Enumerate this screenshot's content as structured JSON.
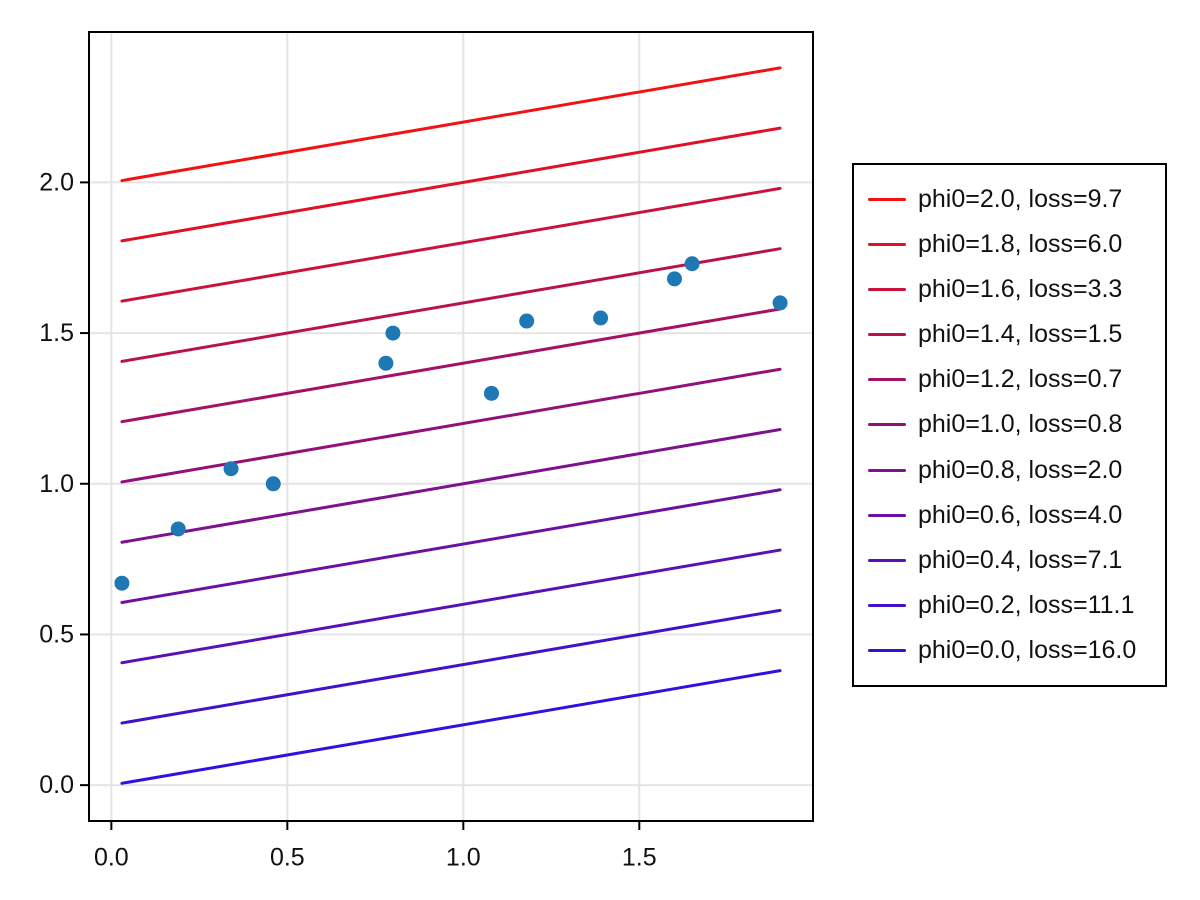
{
  "figure": {
    "background": "#ffffff",
    "frame_color": "#000000",
    "grid_color": "#e4e4e4",
    "tick_color": "#000000",
    "tick_label_color": "#111111"
  },
  "chart_data": {
    "type": "line+scatter",
    "title": "",
    "xlabel": "",
    "ylabel": "",
    "grid": true,
    "legend_position": "right-outside",
    "xlim": [
      -0.0635,
      1.9935
    ],
    "ylim": [
      -0.119,
      2.499
    ],
    "x_tick_values": [
      0.0,
      0.5,
      1.0,
      1.5
    ],
    "x_tick_labels": [
      "0.0",
      "0.5",
      "1.0",
      "1.5"
    ],
    "y_tick_values": [
      0.0,
      0.5,
      1.0,
      1.5,
      2.0
    ],
    "y_tick_labels": [
      "0.0",
      "0.5",
      "1.0",
      "1.5",
      "2.0"
    ],
    "lines": {
      "model": "y = phi0 + slope * x",
      "slope": 0.2,
      "x_start": 0.03,
      "x_end": 1.9,
      "series": [
        {
          "label": "phi0=2.0, loss=9.7",
          "phi0": 2.0,
          "loss": 9.7,
          "color": "#F31111"
        },
        {
          "label": "phi0=1.8, loss=6.0",
          "phi0": 1.8,
          "loss": 6.0,
          "color": "#E01126"
        },
        {
          "label": "phi0=1.6, loss=3.3",
          "phi0": 1.6,
          "loss": 3.3,
          "color": "#CC113A"
        },
        {
          "label": "phi0=1.4, loss=1.5",
          "phi0": 1.4,
          "loss": 1.5,
          "color": "#B9114F"
        },
        {
          "label": "phi0=1.2, loss=0.7",
          "phi0": 1.2,
          "loss": 0.7,
          "color": "#A51164"
        },
        {
          "label": "phi0=1.0, loss=0.8",
          "phi0": 1.0,
          "loss": 0.8,
          "color": "#921179"
        },
        {
          "label": "phi0=0.8, loss=2.0",
          "phi0": 0.8,
          "loss": 2.0,
          "color": "#7E118D"
        },
        {
          "label": "phi0=0.6, loss=4.0",
          "phi0": 0.6,
          "loss": 4.0,
          "color": "#6B11A2"
        },
        {
          "label": "phi0=0.4, loss=7.1",
          "phi0": 0.4,
          "loss": 7.1,
          "color": "#5711B7"
        },
        {
          "label": "phi0=0.2, loss=11.1",
          "phi0": 0.2,
          "loss": 11.1,
          "color": "#4411CB"
        },
        {
          "label": "phi0=0.0, loss=16.0",
          "phi0": 0.0,
          "loss": 16.0,
          "color": "#3011E0"
        }
      ]
    },
    "scatter": {
      "color": "#1f77b4",
      "marker_radius": 7.5,
      "points": [
        [
          0.03,
          0.67
        ],
        [
          0.19,
          0.85
        ],
        [
          0.34,
          1.05
        ],
        [
          0.46,
          1.0
        ],
        [
          0.78,
          1.4
        ],
        [
          0.8,
          1.5
        ],
        [
          1.08,
          1.3
        ],
        [
          1.18,
          1.54
        ],
        [
          1.39,
          1.55
        ],
        [
          1.6,
          1.68
        ],
        [
          1.65,
          1.73
        ],
        [
          1.9,
          1.6
        ]
      ]
    }
  }
}
